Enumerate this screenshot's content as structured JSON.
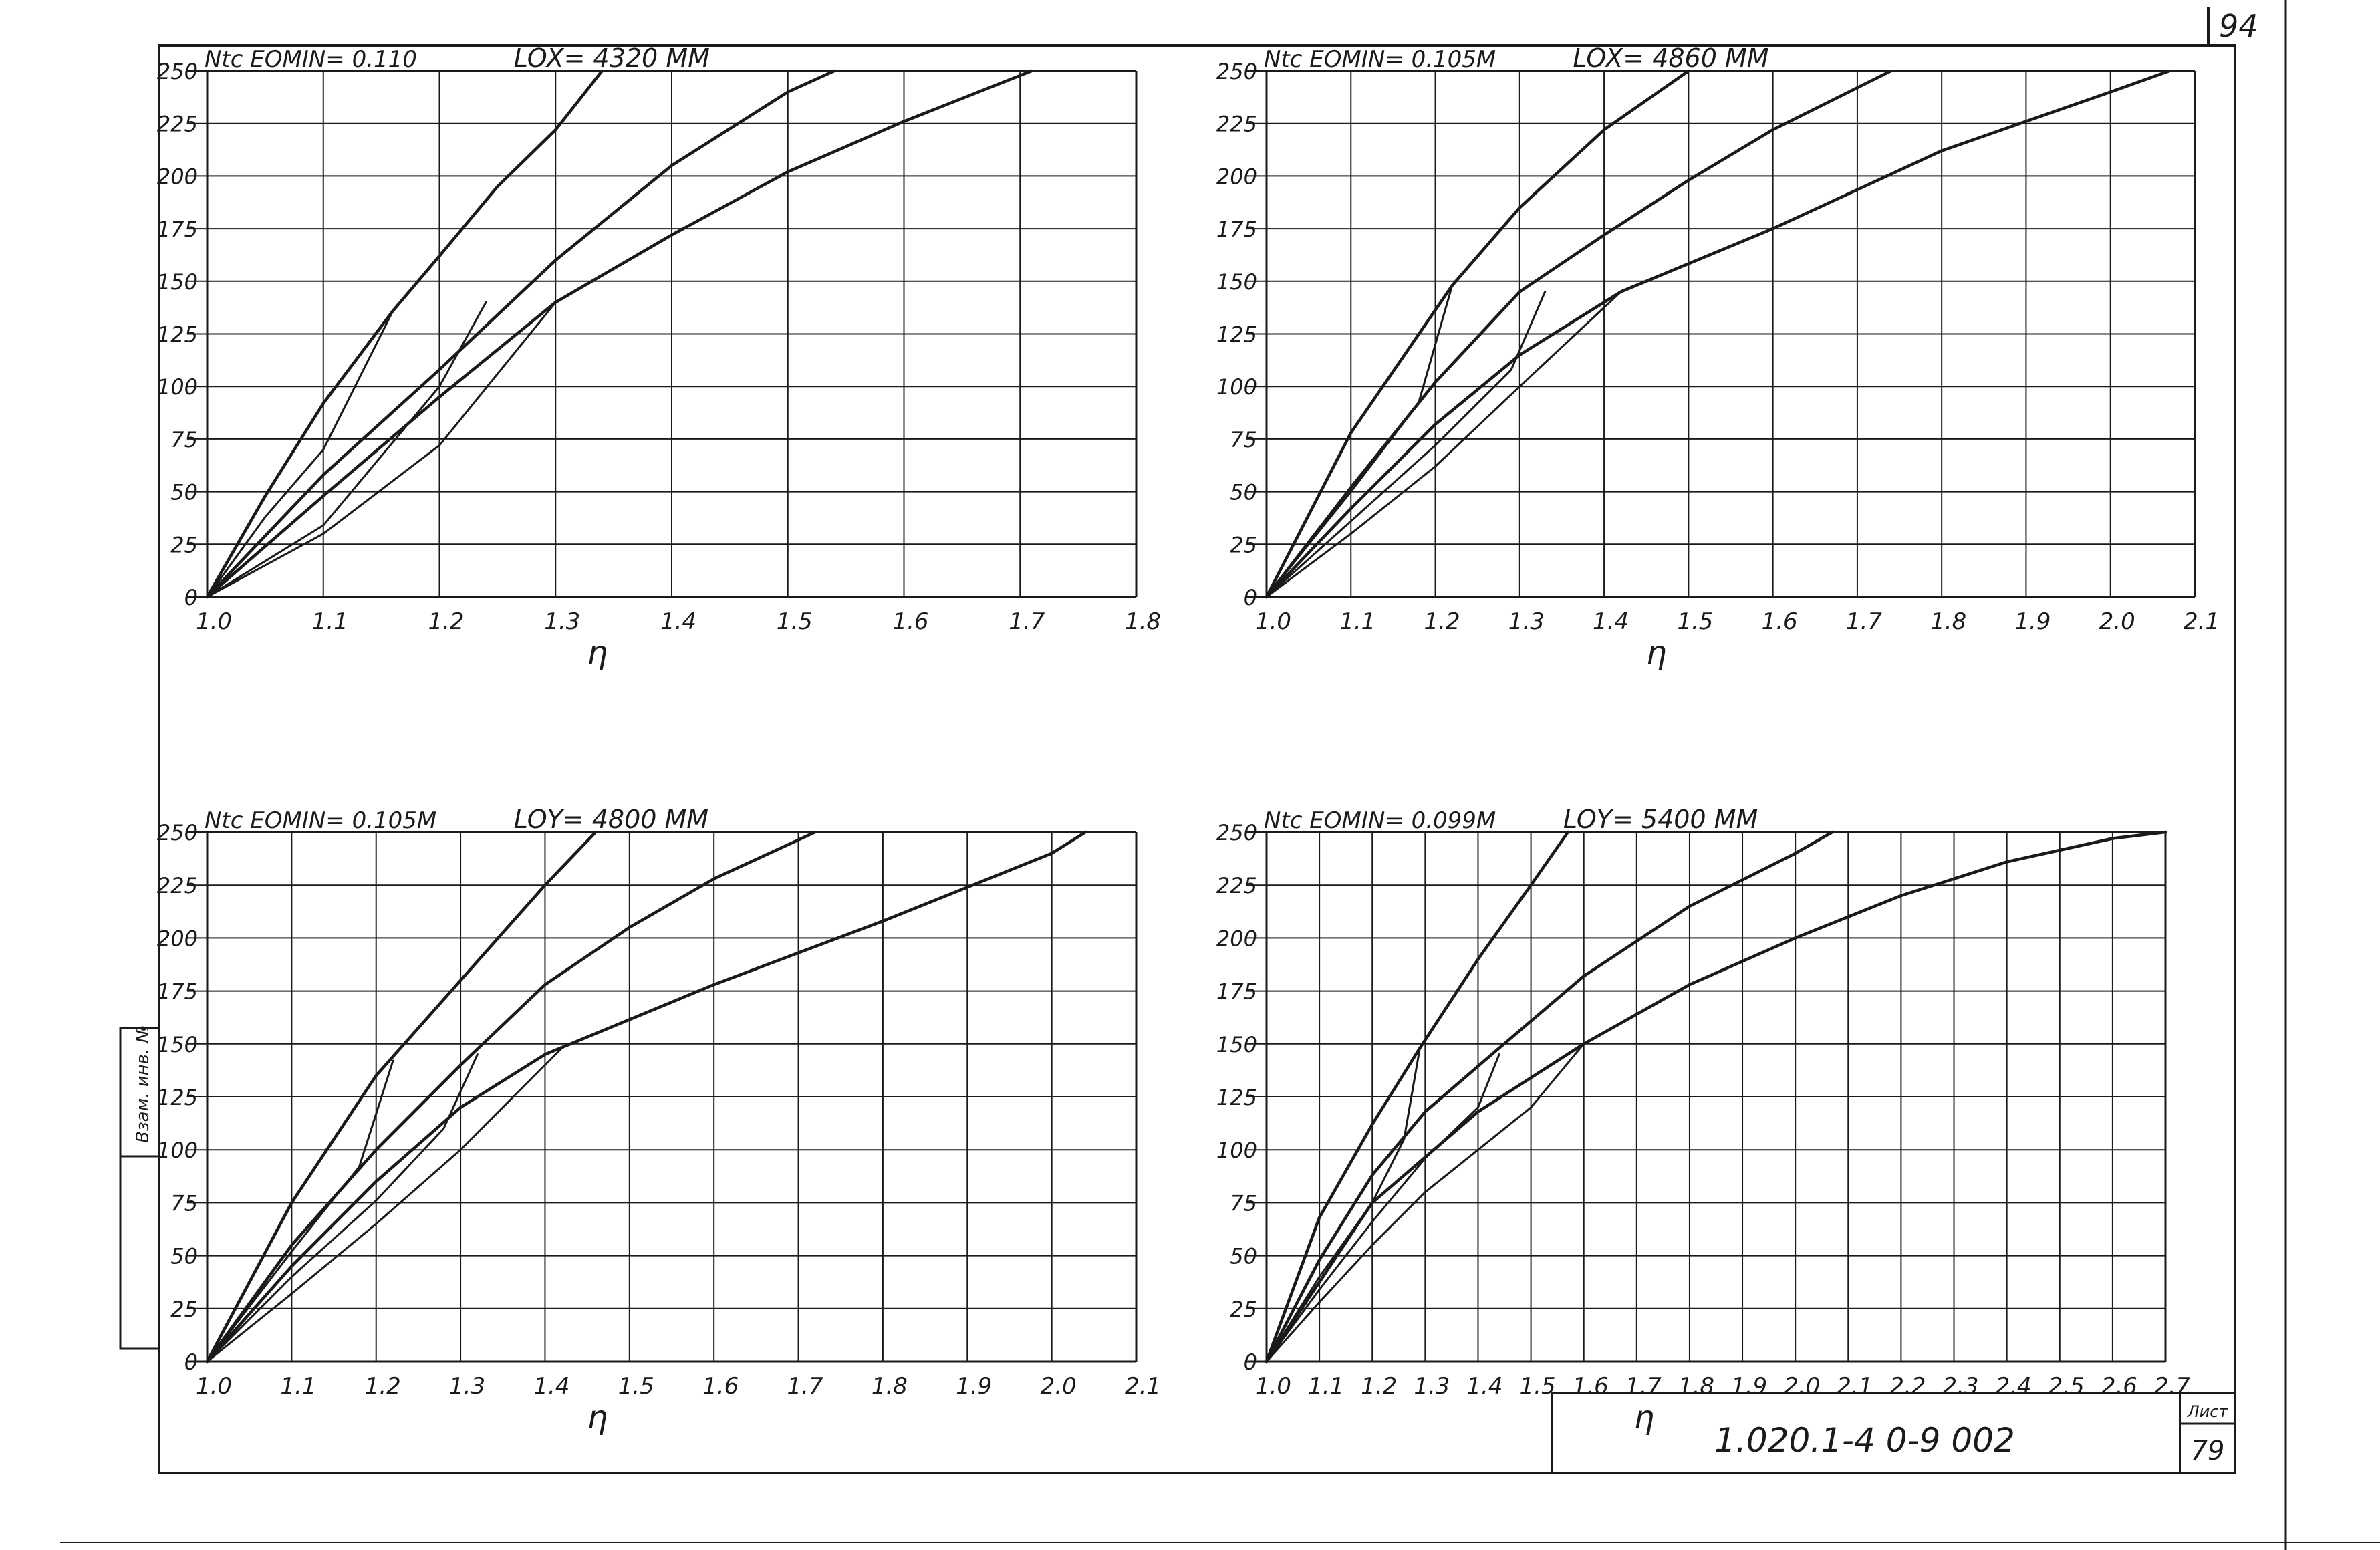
{
  "sheet": {
    "page_number": "94",
    "code": "1.020.1-4   0-9   002",
    "list_label": "Лист",
    "list_number": "79",
    "side_stamp": "Взам. инв. №"
  },
  "chart_data": [
    {
      "type": "line",
      "header_left": "Ntc  EOMIN= 0.110",
      "header_right": "LOX= 4320 MM",
      "xlabel": "η",
      "x_ticks": [
        "1.0",
        "1.1",
        "1.2",
        "1.3",
        "1.4",
        "1.5",
        "1.6",
        "1.7",
        "1.8"
      ],
      "y_ticks": [
        "0",
        "25",
        "50",
        "75",
        "100",
        "125",
        "150",
        "175",
        "200",
        "225",
        "250"
      ],
      "xlim": [
        1.0,
        1.8
      ],
      "ylim": [
        0,
        250
      ],
      "grid": true,
      "series": [
        {
          "x": [
            1.0,
            1.05,
            1.1,
            1.16,
            1.2,
            1.25,
            1.3,
            1.34
          ],
          "y": [
            0,
            48,
            92,
            136,
            162,
            195,
            222,
            250
          ]
        },
        {
          "x": [
            1.0,
            1.1,
            1.2,
            1.3,
            1.4,
            1.5,
            1.54
          ],
          "y": [
            0,
            58,
            108,
            160,
            205,
            240,
            250
          ]
        },
        {
          "x": [
            1.0,
            1.1,
            1.2,
            1.3,
            1.4,
            1.5,
            1.6,
            1.71
          ],
          "y": [
            0,
            48,
            95,
            140,
            172,
            202,
            226,
            250
          ]
        },
        {
          "x": [
            1.0,
            1.05,
            1.1,
            1.16
          ],
          "y": [
            0,
            38,
            70,
            136
          ]
        },
        {
          "x": [
            1.0,
            1.1,
            1.2,
            1.24
          ],
          "y": [
            0,
            34,
            100,
            140
          ]
        },
        {
          "x": [
            1.0,
            1.1,
            1.2,
            1.3
          ],
          "y": [
            0,
            30,
            72,
            140
          ]
        }
      ]
    },
    {
      "type": "line",
      "header_left": "Ntc  EOMIN= 0.105M",
      "header_right": "LOX= 4860 MM",
      "xlabel": "η",
      "x_ticks": [
        "1.0",
        "1.1",
        "1.2",
        "1.3",
        "1.4",
        "1.5",
        "1.6",
        "1.7",
        "1.8",
        "1.9",
        "2.0",
        "2.1"
      ],
      "y_ticks": [
        "0",
        "25",
        "50",
        "75",
        "100",
        "125",
        "150",
        "175",
        "200",
        "225",
        "250"
      ],
      "xlim": [
        1.0,
        2.1
      ],
      "ylim": [
        0,
        250
      ],
      "grid": true,
      "series": [
        {
          "x": [
            1.0,
            1.1,
            1.22,
            1.3,
            1.4,
            1.5
          ],
          "y": [
            0,
            78,
            148,
            185,
            222,
            250
          ]
        },
        {
          "x": [
            1.0,
            1.1,
            1.2,
            1.3,
            1.4,
            1.5,
            1.6,
            1.74
          ],
          "y": [
            0,
            52,
            102,
            145,
            172,
            198,
            222,
            250
          ]
        },
        {
          "x": [
            1.0,
            1.1,
            1.2,
            1.3,
            1.42,
            1.6,
            1.8,
            2.0,
            2.07
          ],
          "y": [
            0,
            42,
            82,
            115,
            145,
            175,
            212,
            240,
            250
          ]
        },
        {
          "x": [
            1.0,
            1.1,
            1.18,
            1.22
          ],
          "y": [
            0,
            50,
            92,
            148
          ]
        },
        {
          "x": [
            1.0,
            1.1,
            1.2,
            1.29,
            1.33
          ],
          "y": [
            0,
            36,
            72,
            108,
            145
          ]
        },
        {
          "x": [
            1.0,
            1.1,
            1.2,
            1.3,
            1.42
          ],
          "y": [
            0,
            30,
            62,
            100,
            145
          ]
        }
      ]
    },
    {
      "type": "line",
      "header_left": "Ntc  EOMIN= 0.105M",
      "header_right": "LOY= 4800 MM",
      "xlabel": "η",
      "x_ticks": [
        "1.0",
        "1.1",
        "1.2",
        "1.3",
        "1.4",
        "1.5",
        "1.6",
        "1.7",
        "1.8",
        "1.9",
        "2.0",
        "2.1"
      ],
      "y_ticks": [
        "0",
        "25",
        "50",
        "75",
        "100",
        "125",
        "150",
        "175",
        "200",
        "225",
        "250"
      ],
      "xlim": [
        1.0,
        2.1
      ],
      "ylim": [
        0,
        250
      ],
      "grid": true,
      "series": [
        {
          "x": [
            1.0,
            1.1,
            1.2,
            1.3,
            1.4,
            1.46
          ],
          "y": [
            0,
            75,
            135,
            180,
            225,
            250
          ]
        },
        {
          "x": [
            1.0,
            1.1,
            1.2,
            1.3,
            1.4,
            1.5,
            1.6,
            1.72
          ],
          "y": [
            0,
            55,
            100,
            140,
            178,
            205,
            228,
            250
          ]
        },
        {
          "x": [
            1.0,
            1.1,
            1.2,
            1.3,
            1.4,
            1.6,
            1.8,
            2.0,
            2.04
          ],
          "y": [
            0,
            45,
            85,
            120,
            145,
            178,
            208,
            240,
            250
          ]
        },
        {
          "x": [
            1.0,
            1.1,
            1.18,
            1.22
          ],
          "y": [
            0,
            52,
            92,
            142
          ]
        },
        {
          "x": [
            1.0,
            1.1,
            1.2,
            1.28,
            1.32
          ],
          "y": [
            0,
            40,
            76,
            110,
            145
          ]
        },
        {
          "x": [
            1.0,
            1.1,
            1.2,
            1.3,
            1.42
          ],
          "y": [
            0,
            32,
            65,
            100,
            148
          ]
        }
      ]
    },
    {
      "type": "line",
      "header_left": "Ntc  EOMIN= 0.099M",
      "header_right": "LOY= 5400 MM",
      "xlabel": "η",
      "x_ticks": [
        "1.0",
        "1.1",
        "1.2",
        "1.3",
        "1.4",
        "1.5",
        "1.6",
        "1.7",
        "1.8",
        "1.9",
        "2.0",
        "2.1",
        "2.2",
        "2.3",
        "2.4",
        "2.5",
        "2.6",
        "2.7"
      ],
      "y_ticks": [
        "0",
        "25",
        "50",
        "75",
        "100",
        "125",
        "150",
        "175",
        "200",
        "225",
        "250"
      ],
      "xlim": [
        1.0,
        2.7
      ],
      "ylim": [
        0,
        250
      ],
      "grid": true,
      "series": [
        {
          "x": [
            1.0,
            1.1,
            1.2,
            1.29,
            1.4,
            1.5,
            1.57
          ],
          "y": [
            0,
            68,
            112,
            148,
            190,
            225,
            250
          ]
        },
        {
          "x": [
            1.0,
            1.1,
            1.2,
            1.3,
            1.44,
            1.6,
            1.8,
            2.0,
            2.07
          ],
          "y": [
            0,
            48,
            88,
            118,
            148,
            182,
            215,
            240,
            250
          ]
        },
        {
          "x": [
            1.0,
            1.2,
            1.4,
            1.6,
            1.8,
            2.0,
            2.2,
            2.4,
            2.6,
            2.7
          ],
          "y": [
            0,
            75,
            118,
            150,
            178,
            200,
            220,
            236,
            247,
            250
          ]
        },
        {
          "x": [
            1.0,
            1.1,
            1.2,
            1.26,
            1.29
          ],
          "y": [
            0,
            40,
            75,
            105,
            148
          ]
        },
        {
          "x": [
            1.0,
            1.1,
            1.2,
            1.3,
            1.4,
            1.44
          ],
          "y": [
            0,
            34,
            66,
            96,
            120,
            145
          ]
        },
        {
          "x": [
            1.0,
            1.1,
            1.2,
            1.3,
            1.4,
            1.5,
            1.6
          ],
          "y": [
            0,
            28,
            55,
            80,
            100,
            120,
            150
          ]
        }
      ]
    }
  ]
}
